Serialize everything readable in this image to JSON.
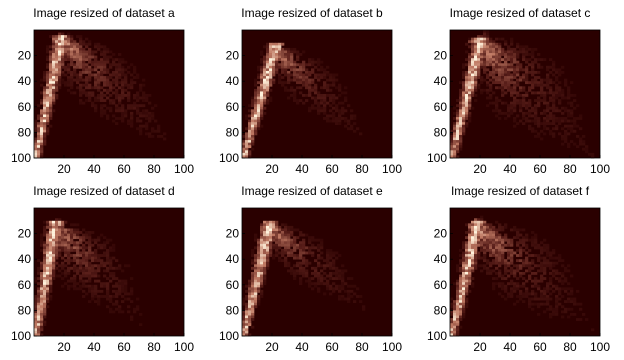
{
  "colors": {
    "background": "#2a0000",
    "low": "#5a1f1a",
    "mid": "#c07a64",
    "high": "#fff2dc"
  },
  "chart_data": [
    {
      "type": "heatmap",
      "title": "Image resized of dataset a",
      "xlim": [
        0,
        100
      ],
      "ylim": [
        100,
        0
      ],
      "xticks": [
        "20",
        "40",
        "60",
        "80",
        "100"
      ],
      "yticks": [
        "20",
        "40",
        "60",
        "80",
        "100"
      ],
      "peak": [
        18,
        8
      ],
      "far_end": [
        88,
        88
      ],
      "spread": 0.9
    },
    {
      "type": "heatmap",
      "title": "Image resized of dataset b",
      "xlim": [
        0,
        100
      ],
      "ylim": [
        100,
        0
      ],
      "xticks": [
        "20",
        "40",
        "60",
        "80",
        "100"
      ],
      "yticks": [
        "20",
        "40",
        "60",
        "80",
        "100"
      ],
      "peak": [
        22,
        15
      ],
      "far_end": [
        80,
        82
      ],
      "spread": 0.7
    },
    {
      "type": "heatmap",
      "title": "Image resized of dataset c",
      "xlim": [
        0,
        100
      ],
      "ylim": [
        100,
        0
      ],
      "xticks": [
        "20",
        "40",
        "60",
        "80",
        "100"
      ],
      "yticks": [
        "20",
        "40",
        "60",
        "80",
        "100"
      ],
      "peak": [
        20,
        10
      ],
      "far_end": [
        92,
        95
      ],
      "spread": 1.1
    },
    {
      "type": "heatmap",
      "title": "Image resized of dataset d",
      "xlim": [
        0,
        100
      ],
      "ylim": [
        100,
        0
      ],
      "xticks": [
        "20",
        "40",
        "60",
        "80",
        "100"
      ],
      "yticks": [
        "20",
        "40",
        "60",
        "80",
        "100"
      ],
      "peak": [
        14,
        15
      ],
      "far_end": [
        70,
        88
      ],
      "spread": 0.9
    },
    {
      "type": "heatmap",
      "title": "Image resized of dataset e",
      "xlim": [
        0,
        100
      ],
      "ylim": [
        100,
        0
      ],
      "xticks": [
        "20",
        "40",
        "60",
        "80",
        "100"
      ],
      "yticks": [
        "20",
        "40",
        "60",
        "80",
        "100"
      ],
      "peak": [
        18,
        15
      ],
      "far_end": [
        82,
        78
      ],
      "spread": 0.7
    },
    {
      "type": "heatmap",
      "title": "Image resized of dataset f",
      "xlim": [
        0,
        100
      ],
      "ylim": [
        100,
        0
      ],
      "xticks": [
        "20",
        "40",
        "60",
        "80",
        "100"
      ],
      "yticks": [
        "20",
        "40",
        "60",
        "80",
        "100"
      ],
      "peak": [
        18,
        15
      ],
      "far_end": [
        92,
        92
      ],
      "spread": 1.0
    }
  ]
}
